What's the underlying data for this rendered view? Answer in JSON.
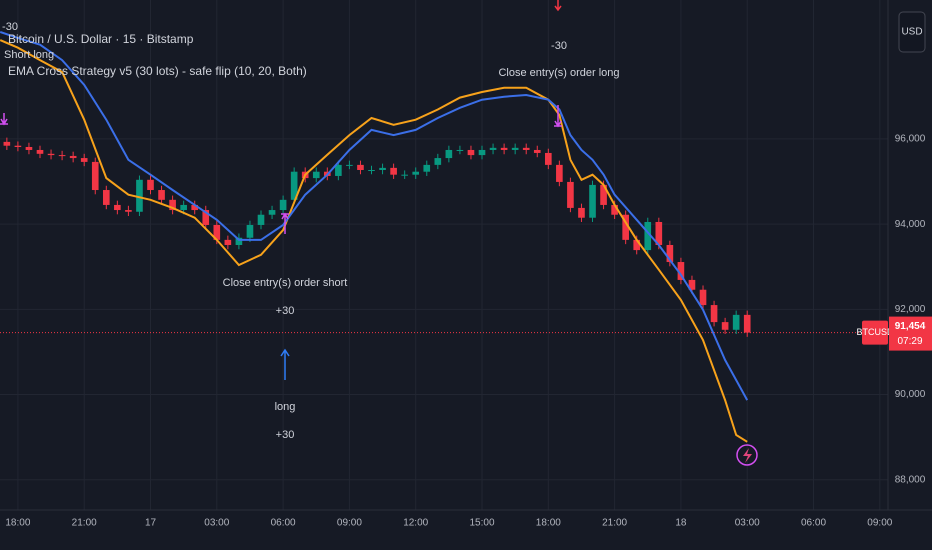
{
  "header": {
    "symbol": "Bitcoin / U.S. Dollar · 15 · Bitstamp",
    "indicator": "EMA Cross Strategy v5 (30 lots) - safe flip (10, 20, Both)",
    "currency": "USD"
  },
  "chart_data": {
    "type": "candlestick",
    "x": [
      -0.5,
      0,
      0.5,
      1,
      1.5,
      2,
      2.5,
      3,
      3.5,
      4,
      4.5,
      5,
      5.5,
      6,
      6.5,
      7,
      7.5,
      8,
      8.5,
      9,
      9.5,
      10,
      10.5,
      11,
      11.5,
      12,
      12.5,
      13,
      13.5,
      14,
      14.5,
      15,
      15.5,
      16,
      16.5,
      17,
      17.5,
      18,
      18.5,
      19,
      19.5,
      20,
      20.5,
      21,
      21.5,
      22,
      22.5,
      23,
      23.5,
      24,
      24.5,
      25,
      25.5,
      26,
      26.5,
      27,
      27.5,
      28,
      28.5,
      29,
      29.5,
      30,
      30.5,
      31,
      31.5,
      32,
      32.5,
      33
    ],
    "open": [
      95930,
      95840,
      95810,
      95740,
      95650,
      95620,
      95600,
      95550,
      95460,
      94800,
      94450,
      94330,
      94290,
      95040,
      94800,
      94570,
      94330,
      94450,
      94330,
      93980,
      93630,
      93510,
      93680,
      93980,
      94220,
      94330,
      94570,
      95230,
      95080,
      95230,
      95130,
      95390,
      95390,
      95270,
      95270,
      95320,
      95160,
      95160,
      95230,
      95390,
      95550,
      95740,
      95740,
      95620,
      95740,
      95790,
      95740,
      95790,
      95740,
      95670,
      95390,
      94990,
      94380,
      94150,
      94920,
      94450,
      94220,
      93630,
      93390,
      94050,
      93510,
      93110,
      92690,
      92460,
      92100,
      91700,
      91520,
      91870
    ],
    "high": [
      96030,
      95940,
      95910,
      95840,
      95750,
      95720,
      95700,
      95650,
      95560,
      94900,
      94550,
      94430,
      95140,
      95140,
      94900,
      94670,
      94550,
      94550,
      94430,
      94080,
      93730,
      93780,
      94080,
      94320,
      94430,
      94670,
      95330,
      95330,
      95330,
      95330,
      95490,
      95490,
      95490,
      95370,
      95420,
      95420,
      95260,
      95330,
      95490,
      95650,
      95840,
      95840,
      95840,
      95840,
      95890,
      95890,
      95890,
      95890,
      95840,
      95770,
      95490,
      95090,
      94480,
      95020,
      95020,
      94550,
      94320,
      93730,
      94150,
      94150,
      93610,
      93210,
      92790,
      92560,
      92200,
      91800,
      91970,
      91970
    ],
    "low": [
      95740,
      95710,
      95640,
      95550,
      95520,
      95500,
      95450,
      95360,
      94700,
      94350,
      94230,
      94190,
      94190,
      94700,
      94470,
      94230,
      94230,
      94230,
      93880,
      93530,
      93410,
      93410,
      93580,
      93880,
      94120,
      94230,
      94470,
      94980,
      94980,
      95030,
      95030,
      95290,
      95170,
      95170,
      95170,
      95060,
      95060,
      95060,
      95130,
      95290,
      95450,
      95640,
      95520,
      95520,
      95640,
      95640,
      95640,
      95640,
      95570,
      95290,
      94890,
      94280,
      94050,
      94050,
      94350,
      94120,
      93530,
      93290,
      93290,
      93410,
      93010,
      92590,
      92360,
      92000,
      91600,
      91420,
      91420,
      91354
    ],
    "close": [
      95840,
      95810,
      95740,
      95650,
      95620,
      95600,
      95550,
      95460,
      94800,
      94450,
      94330,
      94290,
      95040,
      94800,
      94570,
      94330,
      94450,
      94330,
      93980,
      93630,
      93510,
      93680,
      93980,
      94220,
      94330,
      94570,
      95230,
      95080,
      95230,
      95130,
      95390,
      95390,
      95270,
      95270,
      95320,
      95160,
      95160,
      95230,
      95390,
      95550,
      95740,
      95740,
      95620,
      95740,
      95790,
      95740,
      95790,
      95740,
      95670,
      95390,
      94990,
      94380,
      94150,
      94920,
      94450,
      94220,
      93630,
      93390,
      94050,
      93510,
      93110,
      92690,
      92460,
      92100,
      91700,
      91520,
      91870,
      91454
    ],
    "up_color": "#089981",
    "down_color": "#f23645",
    "series": [
      {
        "color": "#f7a21b",
        "x": [
          -0.8,
          0,
          1,
          2,
          3,
          4,
          5,
          6,
          7,
          8,
          9,
          10,
          11,
          12,
          13,
          14,
          15,
          16,
          17,
          18,
          19,
          20,
          21,
          22,
          23,
          24,
          24.5,
          25,
          25.5,
          26,
          26.5,
          27,
          28,
          29,
          30,
          31,
          32,
          32.5,
          33
        ],
        "values": [
          98320,
          98140,
          97850,
          97570,
          96450,
          95080,
          94690,
          94570,
          94380,
          94150,
          93630,
          93040,
          93280,
          93860,
          95160,
          95630,
          96090,
          96490,
          96330,
          96450,
          96690,
          96970,
          97100,
          97200,
          97200,
          96920,
          96560,
          95510,
          95040,
          95160,
          94920,
          94450,
          93630,
          92930,
          92220,
          91280,
          89870,
          89050,
          88890
        ]
      },
      {
        "color": "#3b6fe8",
        "x": [
          -0.8,
          0,
          1,
          2,
          3,
          4,
          5,
          6,
          7,
          8,
          9,
          10,
          11,
          12,
          13,
          14,
          15,
          16,
          17,
          18,
          19,
          20,
          21,
          22,
          23,
          24,
          24.5,
          25,
          25.5,
          26,
          26.5,
          27,
          28,
          29,
          30,
          31,
          32,
          32.5,
          33
        ],
        "values": [
          98510,
          98370,
          98210,
          97850,
          97270,
          96450,
          95510,
          95160,
          94800,
          94450,
          94100,
          93630,
          93630,
          93980,
          94690,
          95160,
          95740,
          96210,
          96090,
          96210,
          96490,
          96730,
          96920,
          96990,
          97030,
          96920,
          96690,
          96090,
          95740,
          95510,
          95160,
          94690,
          94100,
          93510,
          92810,
          91990,
          90810,
          90340,
          89870
        ]
      }
    ],
    "xlim": [
      -0.81,
      39.37
    ],
    "xticks": [
      {
        "value": 0,
        "label": "18:00"
      },
      {
        "value": 3,
        "label": "21:00"
      },
      {
        "value": 6,
        "label": "17"
      },
      {
        "value": 9,
        "label": "03:00"
      },
      {
        "value": 12,
        "label": "06:00"
      },
      {
        "value": 15,
        "label": "09:00"
      },
      {
        "value": 18,
        "label": "12:00"
      },
      {
        "value": 21,
        "label": "15:00"
      },
      {
        "value": 24,
        "label": "18:00"
      },
      {
        "value": 27,
        "label": "21:00"
      },
      {
        "value": 30,
        "label": "18"
      },
      {
        "value": 33,
        "label": "03:00"
      },
      {
        "value": 36,
        "label": "06:00"
      },
      {
        "value": 39,
        "label": "09:00"
      }
    ],
    "ylim": [
      87290,
      99260
    ],
    "yticks": [
      {
        "value": 88000,
        "label": "88,000"
      },
      {
        "value": 90000,
        "label": "90,000"
      },
      {
        "value": 92000,
        "label": "92,000"
      },
      {
        "value": 94000,
        "label": "94,000"
      },
      {
        "value": 96000,
        "label": "96,000"
      }
    ],
    "grid": true,
    "last_price": 91454,
    "last_price_label": "91,454",
    "symbol_tag": "BTCUSD",
    "countdown": "07:29",
    "annotations": [
      "-30",
      "Short long",
      "Close entry(s) order short",
      "+30",
      "long",
      "+30",
      "-30",
      "Close entry(s) order long"
    ]
  }
}
